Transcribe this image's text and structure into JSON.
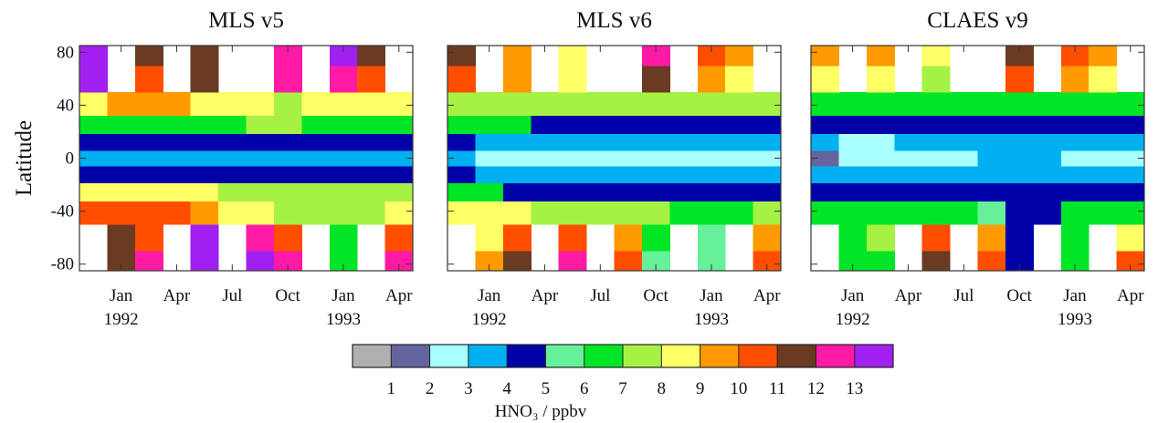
{
  "chart_data": [
    {
      "type": "heatmap",
      "title": "MLS v5",
      "ylabel": "Latitude",
      "show_ytick_labels": true,
      "x": [
        -1.5,
        0,
        1.5,
        3,
        4.5,
        6,
        7.5,
        9,
        10.5,
        12,
        13.5,
        15
      ],
      "y": [
        -80,
        -60,
        -40,
        -25,
        -12,
        0,
        12,
        25,
        40,
        60,
        80
      ],
      "z": [
        [
          null,
          11,
          12,
          null,
          13,
          null,
          13,
          12,
          null,
          6,
          null,
          12
        ],
        [
          null,
          11,
          10,
          null,
          13,
          null,
          12,
          10,
          null,
          6,
          null,
          10
        ],
        [
          10,
          10,
          10,
          10,
          9,
          8,
          8,
          7,
          7,
          7,
          7,
          8
        ],
        [
          8,
          8,
          8,
          8,
          8,
          7,
          7,
          7,
          7,
          7,
          7,
          7
        ],
        [
          4.5,
          4.5,
          4.5,
          4.5,
          4.5,
          4.5,
          4.5,
          4.5,
          4.5,
          4.5,
          4.5,
          4.5
        ],
        [
          3.5,
          3.5,
          3.5,
          3.5,
          3.5,
          3.5,
          3.5,
          3.5,
          3.5,
          3.5,
          3.5,
          3.5
        ],
        [
          4.5,
          4.5,
          4.5,
          4.5,
          4.5,
          4.5,
          4.5,
          4.5,
          4.5,
          4.5,
          4.5,
          4.5
        ],
        [
          6,
          6,
          6,
          6,
          6,
          6,
          7,
          7,
          6,
          6,
          6,
          6
        ],
        [
          8,
          9,
          9,
          9,
          8,
          8,
          8,
          7,
          8,
          8,
          8,
          8
        ],
        [
          13,
          null,
          10,
          null,
          11,
          null,
          null,
          12,
          null,
          12,
          10,
          null
        ],
        [
          13,
          null,
          11,
          null,
          11,
          null,
          null,
          12,
          null,
          13,
          11,
          null
        ]
      ],
      "xlim": [
        -2.25,
        15.75
      ],
      "ylim": [
        -85,
        85
      ],
      "xticks": [
        {
          "value": 0,
          "label": "Jan"
        },
        {
          "value": 3,
          "label": "Apr"
        },
        {
          "value": 6,
          "label": "Jul"
        },
        {
          "value": 9,
          "label": "Oct"
        },
        {
          "value": 12,
          "label": "Jan"
        },
        {
          "value": 15,
          "label": "Apr"
        }
      ],
      "year_labels": [
        {
          "value": 0,
          "label": "1992"
        },
        {
          "value": 12,
          "label": "1993"
        }
      ],
      "yticks": [
        -80,
        -40,
        0,
        40,
        80
      ]
    },
    {
      "type": "heatmap",
      "title": "MLS v6",
      "show_ytick_labels": false,
      "x": [
        -1.5,
        0,
        1.5,
        3,
        4.5,
        6,
        7.5,
        9,
        10.5,
        12,
        13.5,
        15
      ],
      "y": [
        -80,
        -60,
        -40,
        -25,
        -12,
        0,
        12,
        25,
        40,
        60,
        80
      ],
      "z": [
        [
          null,
          9,
          11,
          null,
          12,
          null,
          10,
          5,
          null,
          5,
          null,
          10
        ],
        [
          null,
          8,
          10,
          null,
          10,
          null,
          9,
          6,
          null,
          5,
          null,
          9
        ],
        [
          8,
          8,
          8,
          7,
          7,
          7,
          7,
          7,
          6,
          6,
          6,
          7
        ],
        [
          6,
          6,
          4.5,
          4.5,
          4.5,
          4.5,
          4.5,
          4.5,
          4.5,
          4.5,
          4.5,
          4.5
        ],
        [
          4.5,
          3.5,
          3.5,
          3.5,
          3.5,
          3.5,
          3.5,
          3.5,
          3.5,
          3.5,
          3.5,
          3.5
        ],
        [
          3.5,
          2.5,
          2.5,
          2.5,
          2.5,
          2.5,
          2.5,
          2.5,
          2.5,
          2.5,
          2.5,
          2.5
        ],
        [
          4.5,
          3.5,
          3.5,
          3.5,
          3.5,
          3.5,
          3.5,
          3.5,
          3.5,
          3.5,
          3.5,
          3.5
        ],
        [
          6,
          6,
          6,
          4.5,
          4.5,
          4.5,
          4.5,
          4.5,
          4.5,
          4.5,
          4.5,
          4.5
        ],
        [
          7,
          7,
          7,
          7,
          7,
          7,
          7,
          7,
          7,
          7,
          7,
          7
        ],
        [
          10,
          null,
          9,
          null,
          8,
          null,
          null,
          11,
          null,
          9,
          8,
          null
        ],
        [
          11,
          null,
          9,
          null,
          8,
          null,
          null,
          12,
          null,
          10,
          9,
          null
        ]
      ],
      "xlim": [
        -2.25,
        15.75
      ],
      "ylim": [
        -85,
        85
      ],
      "xticks": [
        {
          "value": 0,
          "label": "Jan"
        },
        {
          "value": 3,
          "label": "Apr"
        },
        {
          "value": 6,
          "label": "Jul"
        },
        {
          "value": 9,
          "label": "Oct"
        },
        {
          "value": 12,
          "label": "Jan"
        },
        {
          "value": 15,
          "label": "Apr"
        }
      ],
      "year_labels": [
        {
          "value": 0,
          "label": "1992"
        },
        {
          "value": 12,
          "label": "1993"
        }
      ],
      "yticks": [
        -80,
        -40,
        0,
        40,
        80
      ]
    },
    {
      "type": "heatmap",
      "title": "CLAES v9",
      "show_ytick_labels": false,
      "x": [
        -1.5,
        0,
        1.5,
        3,
        4.5,
        6,
        7.5,
        9,
        10.5,
        12,
        13.5,
        15
      ],
      "y": [
        -80,
        -60,
        -40,
        -25,
        -12,
        0,
        12,
        25,
        40,
        60,
        80
      ],
      "z": [
        [
          null,
          6,
          6,
          null,
          11,
          null,
          10,
          4.5,
          null,
          6,
          null,
          10
        ],
        [
          null,
          6,
          7,
          null,
          10,
          null,
          9,
          4.5,
          null,
          6,
          null,
          8
        ],
        [
          6,
          6,
          6,
          6,
          6,
          6,
          5.5,
          4.5,
          4.5,
          6,
          6,
          6
        ],
        [
          4.5,
          4.5,
          4.5,
          4.5,
          4.5,
          4.5,
          4.5,
          4.5,
          4.5,
          4.5,
          4.5,
          4.5
        ],
        [
          3.5,
          3.5,
          3.5,
          3.5,
          3.5,
          3.5,
          3.5,
          3.5,
          3.5,
          3.5,
          3.5,
          3.5
        ],
        [
          1.5,
          2.5,
          2.5,
          2.5,
          2.5,
          2.5,
          3.5,
          3.5,
          3.5,
          2.5,
          2.5,
          2.5
        ],
        [
          3.5,
          2.5,
          2.5,
          3.5,
          3.5,
          3.5,
          3.5,
          3.5,
          3.5,
          3.5,
          3.5,
          3.5
        ],
        [
          4.5,
          4.5,
          4.5,
          4.5,
          4.5,
          4.5,
          4.5,
          4.5,
          4.5,
          4.5,
          4.5,
          4.5
        ],
        [
          6,
          6,
          6,
          6,
          6,
          6,
          6,
          6,
          6,
          6,
          6,
          6
        ],
        [
          8,
          null,
          8,
          null,
          7,
          null,
          null,
          10,
          null,
          9,
          8,
          null
        ],
        [
          9,
          null,
          9,
          null,
          8,
          null,
          null,
          11,
          null,
          10,
          9,
          null
        ]
      ],
      "xlim": [
        -2.25,
        15.75
      ],
      "ylim": [
        -85,
        85
      ],
      "xticks": [
        {
          "value": 0,
          "label": "Jan"
        },
        {
          "value": 3,
          "label": "Apr"
        },
        {
          "value": 6,
          "label": "Jul"
        },
        {
          "value": 9,
          "label": "Oct"
        },
        {
          "value": 12,
          "label": "Jan"
        },
        {
          "value": 15,
          "label": "Apr"
        }
      ],
      "year_labels": [
        {
          "value": 0,
          "label": "1992"
        },
        {
          "value": 12,
          "label": "1993"
        }
      ],
      "yticks": [
        -80,
        -40,
        0,
        40,
        80
      ]
    }
  ],
  "colorbar": {
    "label": "HNO₃ / ppbv",
    "ticks": [
      1,
      2,
      3,
      4,
      5,
      6,
      7,
      8,
      9,
      10,
      11,
      12,
      13
    ],
    "colors": [
      "#b0b0b0",
      "#64649e",
      "#a8ffff",
      "#00b0f0",
      "#0000a8",
      "#66f09a",
      "#00e626",
      "#a6f244",
      "#ffff66",
      "#ff9a00",
      "#ff4e00",
      "#6b3a22",
      "#ff1aa6",
      "#a020f0"
    ]
  }
}
